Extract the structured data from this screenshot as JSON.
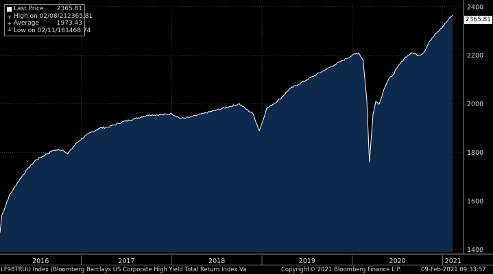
{
  "legend": {
    "last_price_label": "Last Price",
    "last_price_value": "2365.81",
    "high_label": "High on 02/08/21",
    "high_value": "2365.81",
    "avg_label": "Average",
    "avg_value": "1973.43",
    "low_label": "Low on 02/11/16",
    "low_value": "1468.74"
  },
  "price_tag": "2365.81",
  "footer": {
    "ticker": "LF98TRUU Index (Bloomberg Barclays US Corporate High Yield Total Return Index Va",
    "copyright": "Copyright© 2021 Bloomberg Finance L.P.",
    "timestamp": "09-Feb-2021 09:33:57"
  },
  "colors": {
    "background": "#000000",
    "area_fill": "#0d2a4d",
    "line": "#ffffff",
    "grid": "#3a3a3a"
  },
  "chart_data": {
    "type": "area",
    "yticks": [
      1400,
      1600,
      1800,
      2000,
      2200,
      2400
    ],
    "ylim": [
      1390,
      2405
    ],
    "year_labels": [
      "2016",
      "2017",
      "2018",
      "2019",
      "2020",
      "2021"
    ],
    "year_boundaries": [
      2016,
      2017,
      2018,
      2019,
      2020,
      2021
    ],
    "xlim": [
      2016.1,
      2021.11
    ],
    "grid": true,
    "points": [
      [
        2016.1,
        1470
      ],
      [
        2016.12,
        1540
      ],
      [
        2016.2,
        1620
      ],
      [
        2016.3,
        1680
      ],
      [
        2016.4,
        1730
      ],
      [
        2016.5,
        1770
      ],
      [
        2016.6,
        1790
      ],
      [
        2016.7,
        1810
      ],
      [
        2016.8,
        1810
      ],
      [
        2016.85,
        1795
      ],
      [
        2016.95,
        1840
      ],
      [
        2017.05,
        1870
      ],
      [
        2017.2,
        1900
      ],
      [
        2017.3,
        1905
      ],
      [
        2017.45,
        1925
      ],
      [
        2017.6,
        1940
      ],
      [
        2017.75,
        1955
      ],
      [
        2017.9,
        1955
      ],
      [
        2018.0,
        1960
      ],
      [
        2018.1,
        1940
      ],
      [
        2018.2,
        1945
      ],
      [
        2018.35,
        1960
      ],
      [
        2018.5,
        1975
      ],
      [
        2018.65,
        1990
      ],
      [
        2018.75,
        2000
      ],
      [
        2018.82,
        1980
      ],
      [
        2018.9,
        1960
      ],
      [
        2018.97,
        1890
      ],
      [
        2019.0,
        1920
      ],
      [
        2019.05,
        1980
      ],
      [
        2019.2,
        2020
      ],
      [
        2019.3,
        2060
      ],
      [
        2019.4,
        2080
      ],
      [
        2019.5,
        2100
      ],
      [
        2019.6,
        2120
      ],
      [
        2019.7,
        2140
      ],
      [
        2019.8,
        2160
      ],
      [
        2019.9,
        2180
      ],
      [
        2020.0,
        2200
      ],
      [
        2020.07,
        2210
      ],
      [
        2020.12,
        2180
      ],
      [
        2020.16,
        2020
      ],
      [
        2020.19,
        1760
      ],
      [
        2020.23,
        1960
      ],
      [
        2020.26,
        2010
      ],
      [
        2020.3,
        2000
      ],
      [
        2020.35,
        2060
      ],
      [
        2020.4,
        2100
      ],
      [
        2020.45,
        2120
      ],
      [
        2020.5,
        2150
      ],
      [
        2020.58,
        2190
      ],
      [
        2020.66,
        2210
      ],
      [
        2020.75,
        2200
      ],
      [
        2020.8,
        2215
      ],
      [
        2020.86,
        2260
      ],
      [
        2020.92,
        2290
      ],
      [
        2020.98,
        2310
      ],
      [
        2021.05,
        2340
      ],
      [
        2021.11,
        2365.81
      ]
    ]
  }
}
